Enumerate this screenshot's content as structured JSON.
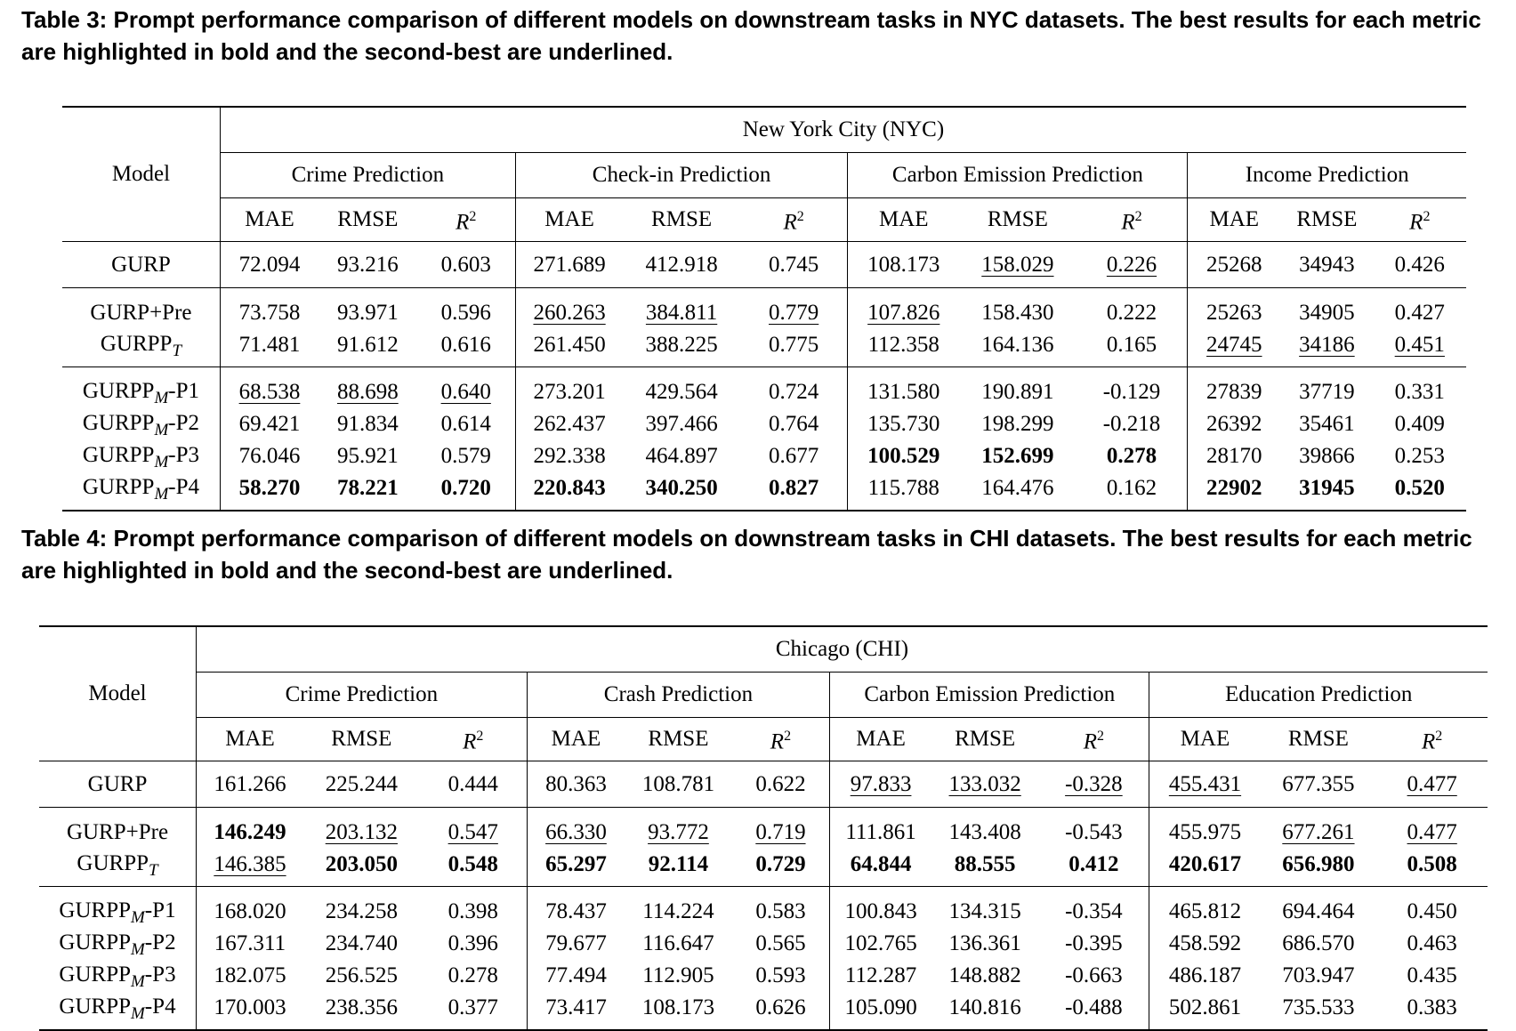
{
  "table3": {
    "caption": "Table 3: Prompt performance comparison of different models on downstream tasks in NYC datasets. The best results for each metric are highlighted in bold and the second-best are underlined.",
    "city": "New York City (NYC)",
    "model_header": "Model",
    "tasks": [
      "Crime Prediction",
      "Check-in Prediction",
      "Carbon Emission Prediction",
      "Income Prediction"
    ],
    "metrics": {
      "mae": "MAE",
      "rmse": "RMSE",
      "r2_base": "R",
      "r2_exp": "2"
    },
    "rows": [
      {
        "model": "GURP",
        "sub": "",
        "suffix": "",
        "values": [
          "72.094",
          "93.216",
          "0.603",
          "271.689",
          "412.918",
          "0.745",
          "108.173",
          "158.029",
          "0.226",
          "25268",
          "34943",
          "0.426"
        ]
      },
      {
        "model": "GURP+Pre",
        "sub": "",
        "suffix": "",
        "values": [
          "73.758",
          "93.971",
          "0.596",
          "260.263",
          "384.811",
          "0.779",
          "107.826",
          "158.430",
          "0.222",
          "25263",
          "34905",
          "0.427"
        ]
      },
      {
        "model": "GURPP",
        "sub": "T",
        "suffix": "",
        "values": [
          "71.481",
          "91.612",
          "0.616",
          "261.450",
          "388.225",
          "0.775",
          "112.358",
          "164.136",
          "0.165",
          "24745",
          "34186",
          "0.451"
        ]
      },
      {
        "model": "GURPP",
        "sub": "M",
        "suffix": "-P1",
        "values": [
          "68.538",
          "88.698",
          "0.640",
          "273.201",
          "429.564",
          "0.724",
          "131.580",
          "190.891",
          "-0.129",
          "27839",
          "37719",
          "0.331"
        ]
      },
      {
        "model": "GURPP",
        "sub": "M",
        "suffix": "-P2",
        "values": [
          "69.421",
          "91.834",
          "0.614",
          "262.437",
          "397.466",
          "0.764",
          "135.730",
          "198.299",
          "-0.218",
          "26392",
          "35461",
          "0.409"
        ]
      },
      {
        "model": "GURPP",
        "sub": "M",
        "suffix": "-P3",
        "values": [
          "76.046",
          "95.921",
          "0.579",
          "292.338",
          "464.897",
          "0.677",
          "100.529",
          "152.699",
          "0.278",
          "28170",
          "39866",
          "0.253"
        ]
      },
      {
        "model": "GURPP",
        "sub": "M",
        "suffix": "-P4",
        "values": [
          "58.270",
          "78.221",
          "0.720",
          "220.843",
          "340.250",
          "0.827",
          "115.788",
          "164.476",
          "0.162",
          "22902",
          "31945",
          "0.520"
        ]
      }
    ]
  },
  "table4": {
    "caption": "Table 4: Prompt performance comparison of different models on downstream tasks in CHI datasets. The best results for each metric are highlighted in bold and the second-best are underlined.",
    "city": "Chicago (CHI)",
    "model_header": "Model",
    "tasks": [
      "Crime Prediction",
      "Crash Prediction",
      "Carbon Emission Prediction",
      "Education Prediction"
    ],
    "metrics": {
      "mae": "MAE",
      "rmse": "RMSE",
      "r2_base": "R",
      "r2_exp": "2"
    },
    "rows": [
      {
        "model": "GURP",
        "sub": "",
        "suffix": "",
        "values": [
          "161.266",
          "225.244",
          "0.444",
          "80.363",
          "108.781",
          "0.622",
          "97.833",
          "133.032",
          "-0.328",
          "455.431",
          "677.355",
          "0.477"
        ]
      },
      {
        "model": "GURP+Pre",
        "sub": "",
        "suffix": "",
        "values": [
          "146.249",
          "203.132",
          "0.547",
          "66.330",
          "93.772",
          "0.719",
          "111.861",
          "143.408",
          "-0.543",
          "455.975",
          "677.261",
          "0.477"
        ]
      },
      {
        "model": "GURPP",
        "sub": "T",
        "suffix": "",
        "values": [
          "146.385",
          "203.050",
          "0.548",
          "65.297",
          "92.114",
          "0.729",
          "64.844",
          "88.555",
          "0.412",
          "420.617",
          "656.980",
          "0.508"
        ]
      },
      {
        "model": "GURPP",
        "sub": "M",
        "suffix": "-P1",
        "values": [
          "168.020",
          "234.258",
          "0.398",
          "78.437",
          "114.224",
          "0.583",
          "100.843",
          "134.315",
          "-0.354",
          "465.812",
          "694.464",
          "0.450"
        ]
      },
      {
        "model": "GURPP",
        "sub": "M",
        "suffix": "-P2",
        "values": [
          "167.311",
          "234.740",
          "0.396",
          "79.677",
          "116.647",
          "0.565",
          "102.765",
          "136.361",
          "-0.395",
          "458.592",
          "686.570",
          "0.463"
        ]
      },
      {
        "model": "GURPP",
        "sub": "M",
        "suffix": "-P3",
        "values": [
          "182.075",
          "256.525",
          "0.278",
          "77.494",
          "112.905",
          "0.593",
          "112.287",
          "148.882",
          "-0.663",
          "486.187",
          "703.947",
          "0.435"
        ]
      },
      {
        "model": "GURPP",
        "sub": "M",
        "suffix": "-P4",
        "values": [
          "170.003",
          "238.356",
          "0.377",
          "73.417",
          "108.173",
          "0.626",
          "105.090",
          "140.816",
          "-0.488",
          "502.861",
          "735.533",
          "0.383"
        ]
      }
    ]
  }
}
